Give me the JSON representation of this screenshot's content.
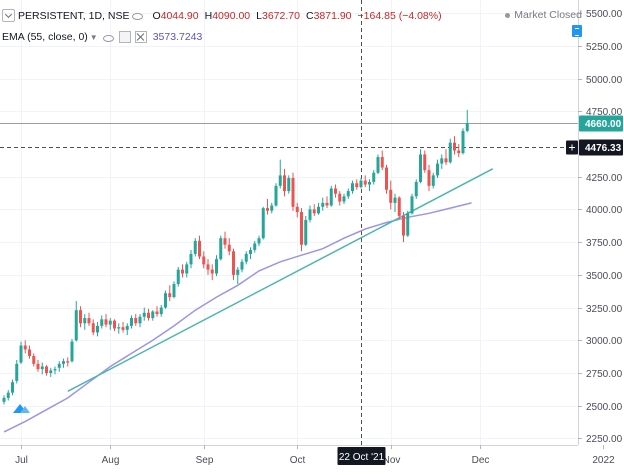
{
  "legend": {
    "symbol": "PERSISTENT, 1D, NSE",
    "open_key": "O",
    "open_val": "4044.90",
    "high_key": "H",
    "high_val": "4090.00",
    "low_key": "L",
    "low_val": "3672.70",
    "close_key": "C",
    "close_val": "3871.90",
    "change": "−164.85 (−4.08%)",
    "ema_label": "EMA (55, close, 0)",
    "ema_value": "3573.7243"
  },
  "status": {
    "market": "Market Closed"
  },
  "price_axis": {
    "ticks": [
      "5500.00",
      "5250.00",
      "5000.00",
      "4750.00",
      "4250.00",
      "4000.00",
      "3750.00",
      "3500.00",
      "3250.00",
      "3000.00",
      "2750.00",
      "2500.00",
      "2250.00"
    ],
    "tick_values": [
      5500,
      5250,
      5000,
      4750,
      4250,
      4000,
      3750,
      3500,
      3250,
      3000,
      2750,
      2500,
      2250
    ],
    "last_price_label": "4660.00",
    "last_price_value": 4660,
    "crosshair_price_label": "4476.33",
    "crosshair_price_value": 4476.33
  },
  "time_axis": {
    "labels": [
      "Jul",
      "Aug",
      "Sep",
      "Oct",
      "Nov",
      "Dec",
      "2022"
    ],
    "label_index": [
      4,
      25,
      47,
      69,
      91,
      112,
      141
    ],
    "crosshair_label": "22 Oct '21",
    "crosshair_index": 84
  },
  "colors": {
    "up": "#26a69a",
    "down": "#ef5350",
    "ema": "#9c94e8",
    "trendline": "#4db6ac",
    "last_price_bg": "#26a69a",
    "crosshair_bg": "#131722"
  },
  "chart_data": {
    "type": "candlestick",
    "price_range": [
      2200,
      5600
    ],
    "series": [
      {
        "name": "PERSISTENT",
        "ohlc": [
          [
            2530,
            2580,
            2510,
            2560
          ],
          [
            2560,
            2620,
            2540,
            2600
          ],
          [
            2600,
            2700,
            2580,
            2680
          ],
          [
            2690,
            2850,
            2670,
            2820
          ],
          [
            2830,
            2990,
            2820,
            2960
          ],
          [
            2960,
            3000,
            2900,
            2930
          ],
          [
            2930,
            2960,
            2860,
            2880
          ],
          [
            2880,
            2900,
            2800,
            2820
          ],
          [
            2820,
            2850,
            2760,
            2780
          ],
          [
            2780,
            2830,
            2740,
            2800
          ],
          [
            2800,
            2810,
            2730,
            2750
          ],
          [
            2750,
            2790,
            2720,
            2770
          ],
          [
            2770,
            2800,
            2740,
            2780
          ],
          [
            2790,
            2840,
            2760,
            2820
          ],
          [
            2820,
            2860,
            2790,
            2840
          ],
          [
            2840,
            2870,
            2800,
            2830
          ],
          [
            2840,
            3010,
            2830,
            2990
          ],
          [
            3000,
            3300,
            2990,
            3230
          ],
          [
            3230,
            3260,
            3100,
            3130
          ],
          [
            3130,
            3200,
            3080,
            3170
          ],
          [
            3170,
            3210,
            3110,
            3130
          ],
          [
            3130,
            3160,
            3040,
            3060
          ],
          [
            3060,
            3140,
            3030,
            3110
          ],
          [
            3110,
            3190,
            3090,
            3160
          ],
          [
            3160,
            3200,
            3100,
            3120
          ],
          [
            3120,
            3170,
            3080,
            3150
          ],
          [
            3150,
            3160,
            3070,
            3090
          ],
          [
            3090,
            3130,
            3050,
            3100
          ],
          [
            3100,
            3140,
            3060,
            3080
          ],
          [
            3080,
            3130,
            3040,
            3110
          ],
          [
            3110,
            3190,
            3090,
            3170
          ],
          [
            3170,
            3200,
            3110,
            3130
          ],
          [
            3130,
            3200,
            3100,
            3180
          ],
          [
            3180,
            3250,
            3150,
            3210
          ],
          [
            3210,
            3240,
            3150,
            3170
          ],
          [
            3170,
            3230,
            3150,
            3220
          ],
          [
            3220,
            3260,
            3180,
            3200
          ],
          [
            3200,
            3270,
            3180,
            3250
          ],
          [
            3250,
            3380,
            3240,
            3360
          ],
          [
            3360,
            3420,
            3300,
            3330
          ],
          [
            3330,
            3450,
            3320,
            3430
          ],
          [
            3430,
            3560,
            3410,
            3540
          ],
          [
            3540,
            3580,
            3480,
            3510
          ],
          [
            3510,
            3600,
            3480,
            3580
          ],
          [
            3580,
            3690,
            3550,
            3660
          ],
          [
            3660,
            3780,
            3640,
            3760
          ],
          [
            3760,
            3800,
            3620,
            3640
          ],
          [
            3640,
            3680,
            3550,
            3580
          ],
          [
            3580,
            3620,
            3500,
            3540
          ],
          [
            3540,
            3580,
            3460,
            3510
          ],
          [
            3510,
            3650,
            3490,
            3620
          ],
          [
            3620,
            3800,
            3610,
            3780
          ],
          [
            3780,
            3830,
            3700,
            3730
          ],
          [
            3730,
            3780,
            3650,
            3680
          ],
          [
            3680,
            3700,
            3460,
            3500
          ],
          [
            3500,
            3560,
            3430,
            3540
          ],
          [
            3540,
            3620,
            3520,
            3600
          ],
          [
            3600,
            3680,
            3580,
            3660
          ],
          [
            3660,
            3710,
            3620,
            3690
          ],
          [
            3690,
            3760,
            3670,
            3740
          ],
          [
            3740,
            3800,
            3720,
            3780
          ],
          [
            3780,
            4020,
            3770,
            4010
          ],
          [
            4010,
            4080,
            3960,
            3990
          ],
          [
            3990,
            4050,
            3970,
            4030
          ],
          [
            4030,
            4200,
            4020,
            4180
          ],
          [
            4180,
            4380,
            4160,
            4260
          ],
          [
            4260,
            4310,
            4100,
            4140
          ],
          [
            4140,
            4260,
            4120,
            4240
          ],
          [
            4240,
            4280,
            3990,
            4020
          ],
          [
            4020,
            4050,
            3940,
            3980
          ],
          [
            3980,
            4010,
            3680,
            3730
          ],
          [
            3730,
            3950,
            3720,
            3920
          ],
          [
            3920,
            4030,
            3900,
            4000
          ],
          [
            4000,
            4040,
            3950,
            3970
          ],
          [
            3970,
            4050,
            3960,
            4020
          ],
          [
            4020,
            4090,
            3990,
            4050
          ],
          [
            4050,
            4100,
            4010,
            4030
          ],
          [
            4030,
            4180,
            4020,
            4160
          ],
          [
            4160,
            4190,
            4090,
            4120
          ],
          [
            4120,
            4140,
            4030,
            4060
          ],
          [
            4060,
            4120,
            4040,
            4100
          ],
          [
            4100,
            4160,
            4080,
            4140
          ],
          [
            4140,
            4220,
            4120,
            4200
          ],
          [
            4200,
            4230,
            4150,
            4170
          ],
          [
            4170,
            4240,
            4160,
            4220
          ],
          [
            4220,
            4260,
            4170,
            4190
          ],
          [
            4190,
            4230,
            4140,
            4210
          ],
          [
            4210,
            4300,
            4190,
            4280
          ],
          [
            4280,
            4420,
            4270,
            4400
          ],
          [
            4400,
            4450,
            4300,
            4320
          ],
          [
            4320,
            4340,
            4120,
            4150
          ],
          [
            4150,
            4220,
            4000,
            4050
          ],
          [
            4050,
            4120,
            3980,
            4090
          ],
          [
            4090,
            4100,
            3930,
            3950
          ],
          [
            3950,
            3980,
            3750,
            3800
          ],
          [
            3800,
            3990,
            3790,
            3970
          ],
          [
            3970,
            4120,
            3960,
            4100
          ],
          [
            4100,
            4230,
            4080,
            4210
          ],
          [
            4210,
            4460,
            4200,
            4420
          ],
          [
            4420,
            4450,
            4280,
            4300
          ],
          [
            4300,
            4340,
            4140,
            4180
          ],
          [
            4180,
            4280,
            4160,
            4260
          ],
          [
            4260,
            4380,
            4240,
            4350
          ],
          [
            4350,
            4420,
            4310,
            4390
          ],
          [
            4390,
            4460,
            4340,
            4360
          ],
          [
            4360,
            4540,
            4350,
            4510
          ],
          [
            4510,
            4560,
            4420,
            4450
          ],
          [
            4450,
            4500,
            4400,
            4430
          ],
          [
            4430,
            4620,
            4420,
            4600
          ],
          [
            4600,
            4760,
            4590,
            4660
          ]
        ]
      },
      {
        "name": "EMA (55, close, 0)",
        "points": [
          [
            0,
            2300
          ],
          [
            5,
            2380
          ],
          [
            10,
            2470
          ],
          [
            15,
            2560
          ],
          [
            20,
            2680
          ],
          [
            25,
            2800
          ],
          [
            30,
            2900
          ],
          [
            35,
            3000
          ],
          [
            40,
            3110
          ],
          [
            45,
            3230
          ],
          [
            50,
            3330
          ],
          [
            55,
            3420
          ],
          [
            60,
            3530
          ],
          [
            65,
            3600
          ],
          [
            70,
            3650
          ],
          [
            75,
            3700
          ],
          [
            80,
            3780
          ],
          [
            85,
            3850
          ],
          [
            90,
            3900
          ],
          [
            95,
            3940
          ],
          [
            100,
            3970
          ],
          [
            105,
            4010
          ],
          [
            110,
            4050
          ]
        ]
      }
    ],
    "trendline": [
      [
        15,
        2610
      ],
      [
        115,
        4310
      ]
    ]
  }
}
